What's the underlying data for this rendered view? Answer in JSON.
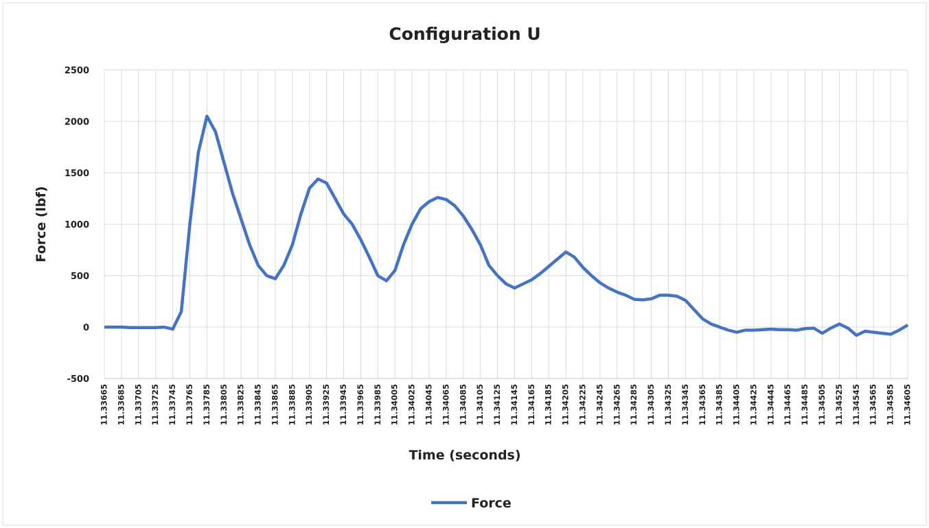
{
  "chart_data": {
    "type": "line",
    "title": "Configuration U",
    "x_label": "Time (seconds)",
    "y_label": "Force (lbf)",
    "x": [
      11.33665,
      11.33675,
      11.33685,
      11.33695,
      11.33705,
      11.33715,
      11.33725,
      11.33735,
      11.33745,
      11.33755,
      11.33765,
      11.33775,
      11.33785,
      11.33795,
      11.33805,
      11.33815,
      11.33825,
      11.33835,
      11.33845,
      11.33855,
      11.33865,
      11.33875,
      11.33885,
      11.33895,
      11.33905,
      11.33915,
      11.33925,
      11.33935,
      11.33945,
      11.33955,
      11.33965,
      11.33975,
      11.33985,
      11.33995,
      11.34005,
      11.34015,
      11.34025,
      11.34035,
      11.34045,
      11.34055,
      11.34065,
      11.34075,
      11.34085,
      11.34095,
      11.34105,
      11.34115,
      11.34125,
      11.34135,
      11.34145,
      11.34155,
      11.34165,
      11.34175,
      11.34185,
      11.34195,
      11.34205,
      11.34215,
      11.34225,
      11.34235,
      11.34245,
      11.34255,
      11.34265,
      11.34275,
      11.34285,
      11.34295,
      11.34305,
      11.34315,
      11.34325,
      11.34335,
      11.34345,
      11.34355,
      11.34365,
      11.34375,
      11.34385,
      11.34395,
      11.34405,
      11.34415,
      11.34425,
      11.34435,
      11.34445,
      11.34455,
      11.34465,
      11.34475,
      11.34485,
      11.34495,
      11.34505,
      11.34515,
      11.34525,
      11.34535,
      11.34545,
      11.34555,
      11.34565,
      11.34575,
      11.34585,
      11.34595,
      11.34605
    ],
    "series": [
      {
        "name": "Force",
        "color": "#4472c4",
        "values": [
          0,
          0,
          0,
          -5,
          -5,
          -5,
          -5,
          0,
          -20,
          150,
          1000,
          1700,
          2050,
          1900,
          1600,
          1300,
          1050,
          800,
          600,
          500,
          470,
          600,
          800,
          1100,
          1350,
          1440,
          1400,
          1250,
          1100,
          1000,
          850,
          680,
          500,
          450,
          550,
          800,
          1000,
          1150,
          1220,
          1260,
          1240,
          1180,
          1080,
          950,
          800,
          600,
          500,
          420,
          380,
          420,
          460,
          520,
          590,
          660,
          730,
          680,
          580,
          500,
          430,
          380,
          340,
          310,
          270,
          265,
          275,
          310,
          310,
          300,
          260,
          170,
          80,
          30,
          0,
          -30,
          -50,
          -30,
          -30,
          -25,
          -20,
          -25,
          -25,
          -30,
          -15,
          -10,
          -60,
          -10,
          30,
          -10,
          -80,
          -40,
          -50,
          -60,
          -70,
          -30,
          20
        ]
      }
    ],
    "xlim": [
      11.33665,
      11.34605
    ],
    "xticks": [
      11.33665,
      11.33685,
      11.33705,
      11.33725,
      11.33745,
      11.33765,
      11.33785,
      11.33805,
      11.33825,
      11.33845,
      11.33865,
      11.33885,
      11.33905,
      11.33925,
      11.33945,
      11.33965,
      11.33985,
      11.34005,
      11.34025,
      11.34045,
      11.34065,
      11.34085,
      11.34105,
      11.34125,
      11.34145,
      11.34165,
      11.34185,
      11.34205,
      11.34225,
      11.34245,
      11.34265,
      11.34285,
      11.34305,
      11.34325,
      11.34345,
      11.34365,
      11.34385,
      11.34405,
      11.34425,
      11.34445,
      11.34465,
      11.34485,
      11.34505,
      11.34525,
      11.34545,
      11.34565,
      11.34585,
      11.34605
    ],
    "ylim": [
      -500,
      2500
    ],
    "yticks": [
      -500,
      0,
      500,
      1000,
      1500,
      2000,
      2500
    ],
    "grid": true,
    "legend": "bottom"
  }
}
